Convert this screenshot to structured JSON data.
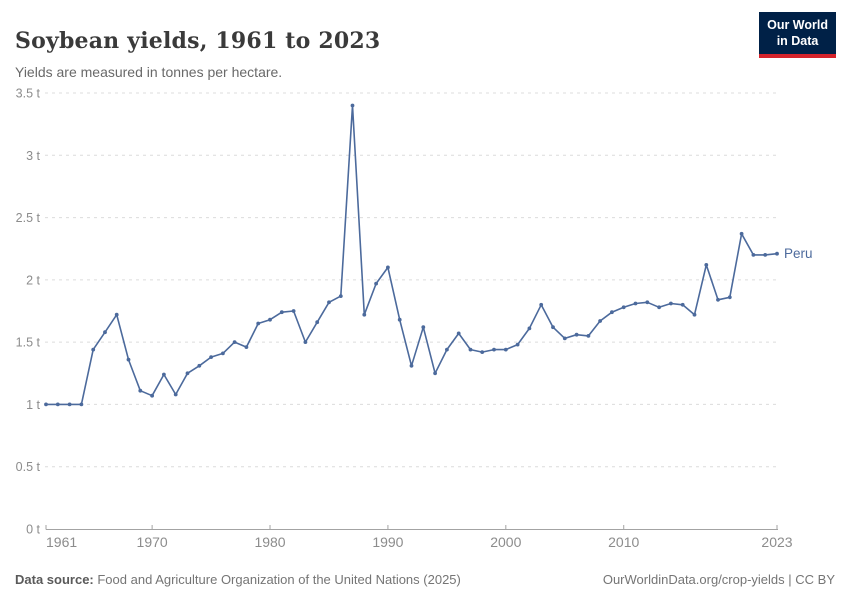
{
  "header": {
    "title": "Soybean yields, 1961 to 2023",
    "subtitle": "Yields are measured in tonnes per hectare."
  },
  "logo": {
    "line1": "Our World",
    "line2": "in Data",
    "bg_color": "#002147",
    "accent_color": "#D5232B"
  },
  "chart_data": {
    "type": "line",
    "title": "Soybean yields, 1961 to 2023",
    "unit": "tonnes per hectare",
    "xlabel": "",
    "ylabel": "t",
    "xlim": [
      1961,
      2023
    ],
    "ylim": [
      0,
      3.5
    ],
    "grid": "horizontal-dashed",
    "legend_position": "end-of-line-label",
    "x_ticks": [
      1961,
      1970,
      1980,
      1990,
      2000,
      2010,
      2023
    ],
    "y_ticks": [
      0,
      0.5,
      1,
      1.5,
      2,
      2.5,
      3,
      3.5
    ],
    "y_tick_labels": [
      "0 t",
      "0.5 t",
      "1 t",
      "1.5 t",
      "2 t",
      "2.5 t",
      "3 t",
      "3.5 t"
    ],
    "x": [
      1961,
      1962,
      1963,
      1964,
      1965,
      1966,
      1967,
      1968,
      1969,
      1970,
      1971,
      1972,
      1973,
      1974,
      1975,
      1976,
      1977,
      1978,
      1979,
      1980,
      1981,
      1982,
      1983,
      1984,
      1985,
      1986,
      1987,
      1988,
      1989,
      1990,
      1991,
      1992,
      1993,
      1994,
      1995,
      1996,
      1997,
      1998,
      1999,
      2000,
      2001,
      2002,
      2003,
      2004,
      2005,
      2006,
      2007,
      2008,
      2009,
      2010,
      2011,
      2012,
      2013,
      2014,
      2015,
      2016,
      2017,
      2018,
      2019,
      2020,
      2021,
      2022,
      2023
    ],
    "series": [
      {
        "name": "Peru",
        "color": "#4C6A9C",
        "values": [
          1.0,
          1.0,
          1.0,
          1.0,
          1.44,
          1.58,
          1.72,
          1.36,
          1.11,
          1.07,
          1.24,
          1.08,
          1.25,
          1.31,
          1.38,
          1.41,
          1.5,
          1.46,
          1.65,
          1.68,
          1.74,
          1.75,
          1.5,
          1.66,
          1.82,
          1.87,
          3.4,
          1.72,
          1.97,
          2.1,
          1.68,
          1.31,
          1.62,
          1.25,
          1.44,
          1.57,
          1.44,
          1.42,
          1.44,
          1.44,
          1.48,
          1.61,
          1.8,
          1.62,
          1.53,
          1.56,
          1.55,
          1.67,
          1.74,
          1.78,
          1.81,
          1.82,
          1.78,
          1.81,
          1.8,
          1.72,
          2.12,
          1.84,
          1.86,
          2.37,
          2.2,
          2.2,
          2.21
        ]
      }
    ]
  },
  "footer": {
    "source_label": "Data source:",
    "source_text": " Food and Agriculture Organization of the United Nations (2025)",
    "link_text": "OurWorldinData.org/crop-yields | CC BY"
  }
}
